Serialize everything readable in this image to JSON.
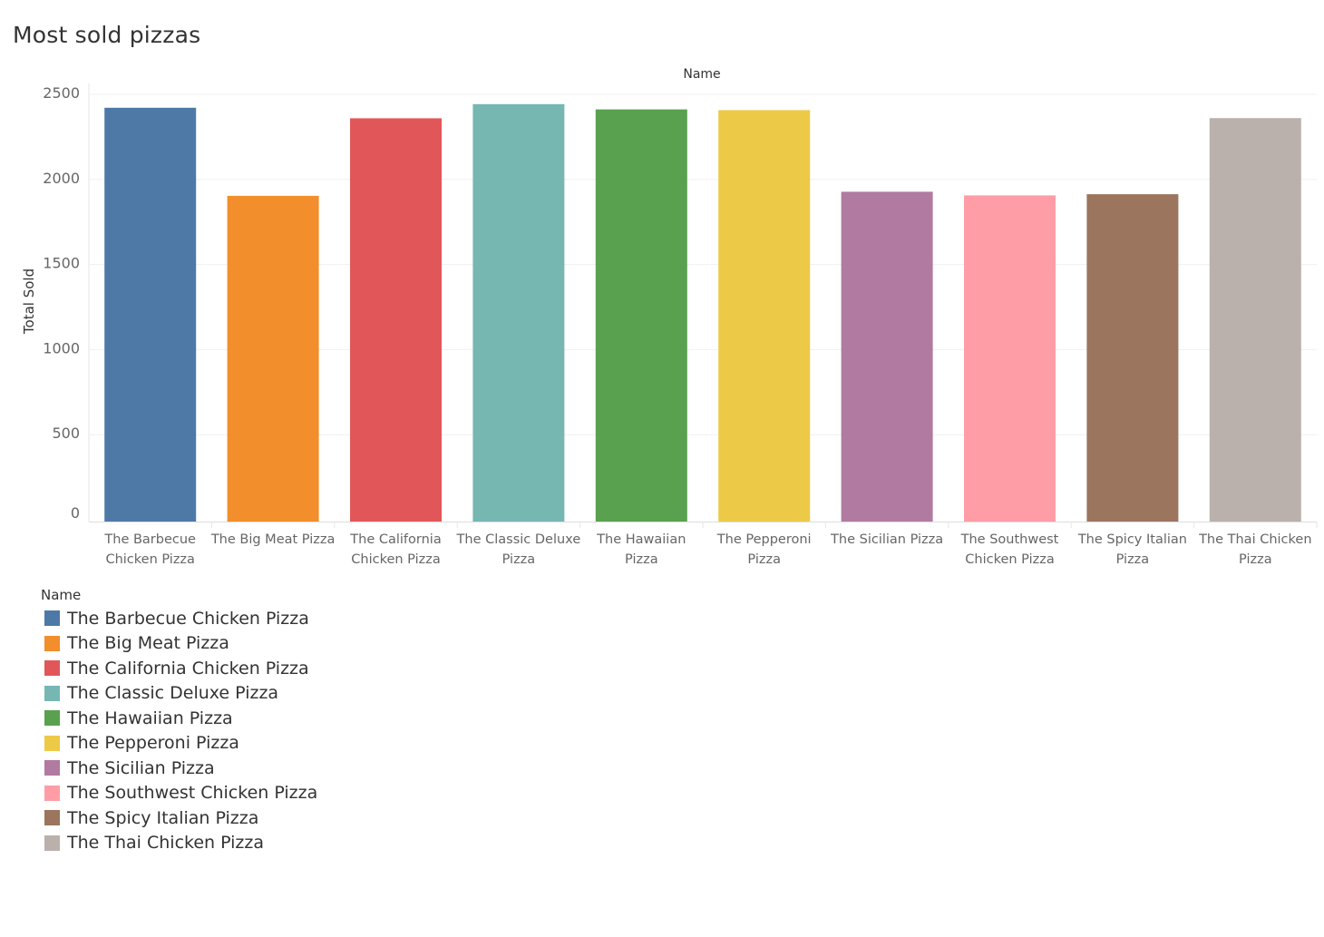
{
  "title": "Most sold pizzas",
  "chart_data": {
    "type": "bar",
    "title": "Most sold pizzas",
    "header_label": "Name",
    "ylabel": "Total Sold",
    "xlabel": "",
    "ylim": [
      0,
      2500
    ],
    "yticks": [
      0,
      500,
      1000,
      1500,
      2000,
      2500
    ],
    "grid": true,
    "categories": [
      [
        "The Barbecue",
        "Chicken Pizza"
      ],
      [
        "The Big Meat Pizza"
      ],
      [
        "The California",
        "Chicken Pizza"
      ],
      [
        "The Classic Deluxe",
        "Pizza"
      ],
      [
        "The Hawaiian",
        "Pizza"
      ],
      [
        "The Pepperoni",
        "Pizza"
      ],
      [
        "The Sicilian Pizza"
      ],
      [
        "The Southwest",
        "Chicken Pizza"
      ],
      [
        "The Spicy Italian",
        "Pizza"
      ],
      [
        "The Thai Chicken",
        "Pizza"
      ]
    ],
    "values": [
      2432,
      1914,
      2370,
      2453,
      2422,
      2418,
      1938,
      1917,
      1924,
      2371
    ],
    "colors": [
      "#4e79a7",
      "#f28e2b",
      "#e15759",
      "#76b7b2",
      "#59a14f",
      "#edc948",
      "#b07aa1",
      "#ff9da7",
      "#9c755f",
      "#bab0ac"
    ]
  },
  "legend": {
    "title": "Name",
    "placement": "bottom-left",
    "items": [
      {
        "label": "The Barbecue Chicken Pizza",
        "color": "#4e79a7"
      },
      {
        "label": "The Big Meat Pizza",
        "color": "#f28e2b"
      },
      {
        "label": "The California Chicken Pizza",
        "color": "#e15759"
      },
      {
        "label": "The Classic Deluxe Pizza",
        "color": "#76b7b2"
      },
      {
        "label": "The Hawaiian Pizza",
        "color": "#59a14f"
      },
      {
        "label": "The Pepperoni Pizza",
        "color": "#edc948"
      },
      {
        "label": "The Sicilian Pizza",
        "color": "#b07aa1"
      },
      {
        "label": "The Southwest Chicken Pizza",
        "color": "#ff9da7"
      },
      {
        "label": "The Spicy Italian Pizza",
        "color": "#9c755f"
      },
      {
        "label": "The Thai Chicken Pizza",
        "color": "#bab0ac"
      }
    ]
  }
}
